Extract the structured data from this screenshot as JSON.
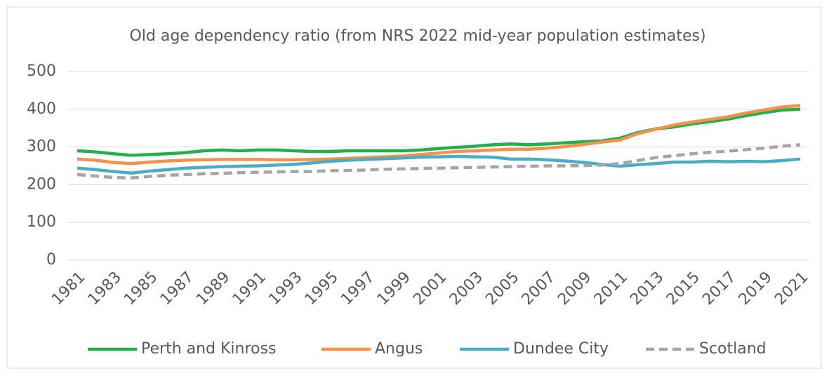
{
  "chart_data": {
    "type": "line",
    "title": "Old age dependency ratio (from NRS 2022 mid-year population estimates)",
    "categories": [
      "1981",
      null,
      "1983",
      null,
      "1985",
      null,
      "1987",
      null,
      "1989",
      null,
      "1991",
      null,
      "1993",
      null,
      "1995",
      null,
      "1997",
      null,
      "1999",
      null,
      "2001",
      null,
      "2003",
      null,
      "2005",
      null,
      "2007",
      null,
      "2009",
      null,
      "2011",
      null,
      "2013",
      null,
      "2015",
      null,
      "2017",
      null,
      "2019",
      null,
      "2021"
    ],
    "series": [
      {
        "name": "Perth and Kinross",
        "color": "#21b04b",
        "values": [
          290,
          287,
          282,
          278,
          280,
          282,
          285,
          290,
          292,
          290,
          292,
          292,
          290,
          288,
          288,
          290,
          290,
          290,
          290,
          292,
          296,
          299,
          302,
          306,
          308,
          306,
          308,
          311,
          314,
          316,
          323,
          338,
          348,
          353,
          361,
          367,
          374,
          383,
          391,
          398,
          400
        ]
      },
      {
        "name": "Angus",
        "color": "#f5924a",
        "values": [
          268,
          265,
          259,
          256,
          260,
          263,
          265,
          266,
          267,
          267,
          267,
          266,
          266,
          267,
          268,
          270,
          272,
          274,
          276,
          280,
          284,
          288,
          290,
          292,
          294,
          294,
          297,
          301,
          307,
          313,
          318,
          335,
          347,
          358,
          366,
          373,
          380,
          390,
          398,
          406,
          410
        ]
      },
      {
        "name": "Dundee City",
        "color": "#4bacc6",
        "values": [
          244,
          240,
          235,
          231,
          236,
          240,
          244,
          246,
          248,
          249,
          250,
          252,
          254,
          258,
          262,
          265,
          267,
          269,
          271,
          273,
          274,
          275,
          274,
          273,
          268,
          268,
          266,
          263,
          259,
          254,
          249,
          253,
          256,
          260,
          260,
          262,
          261,
          262,
          261,
          264,
          268
        ]
      },
      {
        "name": "Scotland",
        "color": "#a5a5a5",
        "line_style": "dashed",
        "values": [
          227,
          223,
          219,
          218,
          222,
          225,
          227,
          229,
          230,
          232,
          233,
          234,
          235,
          235,
          237,
          238,
          239,
          241,
          242,
          243,
          244,
          245,
          246,
          247,
          248,
          249,
          250,
          250,
          251,
          252,
          256,
          264,
          272,
          277,
          282,
          286,
          289,
          293,
          297,
          302,
          306
        ]
      }
    ],
    "ylim": [
      0,
      500
    ],
    "yticks": [
      0,
      100,
      200,
      300,
      400,
      500
    ],
    "grid": true,
    "legend": "bottom"
  }
}
